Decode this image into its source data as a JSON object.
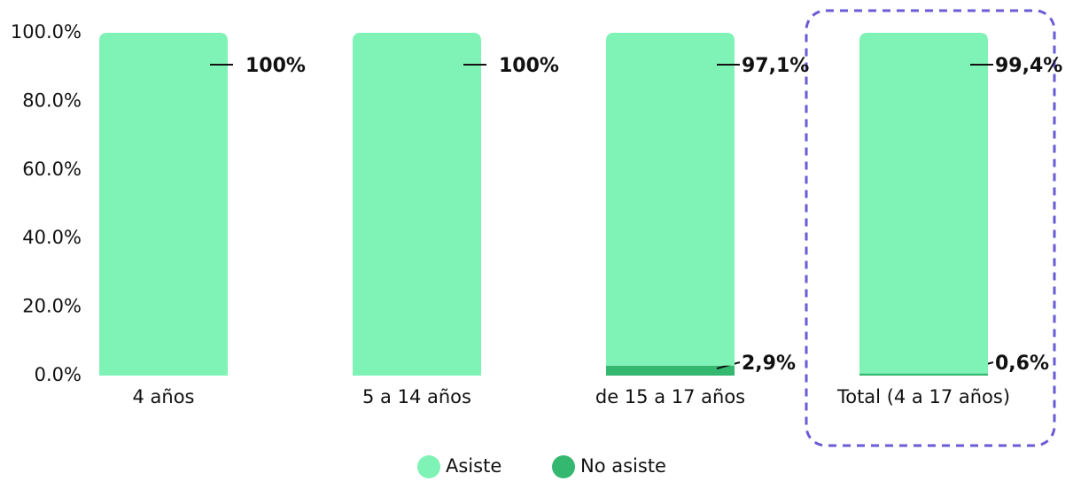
{
  "chart_data": {
    "type": "stacked_bar",
    "categories": [
      "4 años",
      "5 a 14 años",
      "de 15 a 17 años",
      "Total (4 a 17 años)"
    ],
    "series": [
      {
        "name": "No asiste",
        "color": "#34b870",
        "values": [
          0,
          0,
          2.9,
          0.6
        ],
        "value_labels": [
          null,
          null,
          "2,9%",
          "0,6%"
        ]
      },
      {
        "name": "Asiste",
        "color": "#7ff2b6",
        "values": [
          100,
          100,
          97.1,
          99.4
        ],
        "value_labels": [
          "100%",
          "100%",
          "97,1%",
          "99,4%"
        ]
      }
    ],
    "ylim": [
      0,
      100
    ],
    "yticks": [
      {
        "value": 0,
        "label": "0.0%"
      },
      {
        "value": 20,
        "label": "20.0%"
      },
      {
        "value": 40,
        "label": "40.0%"
      },
      {
        "value": 60,
        "label": "60.0%"
      },
      {
        "value": 80,
        "label": "80.0%"
      },
      {
        "value": 100,
        "label": "100.0%"
      }
    ],
    "legend": "bottom"
  }
}
